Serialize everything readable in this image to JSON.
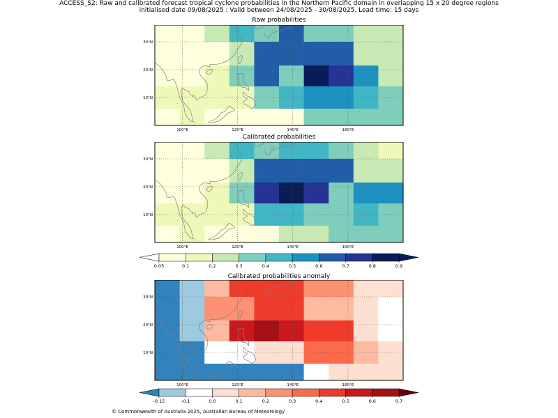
{
  "title_line1": "ACCESS_S2: Raw and calibrated forecast tropical cyclone probabilities in the Northern Pacific domain in overlapping 15 x 20 degree regions",
  "title_line2": "initialised date 09/08/2025 :  Valid between 24/08/2025 - 30/08/2025. Lead time: 15 days",
  "footer": "© Commonwealth of Australia 2025, Australian Bureau of Meteorology",
  "panels": [
    {
      "title": "Raw probabilities",
      "scale": "prob",
      "rows": [
        [
          "w",
          "w",
          "l",
          "p",
          "m",
          "o",
          "n",
          "m",
          "j",
          "j"
        ],
        [
          "w",
          "w",
          "w",
          "l",
          "a",
          "a",
          "o",
          "o",
          "i",
          "i"
        ],
        [
          "w",
          "w",
          "v",
          "m",
          "h",
          "n",
          "r",
          "x",
          "f",
          "l"
        ],
        [
          "v",
          "v",
          "k",
          "k",
          "c",
          "e",
          "g",
          "g",
          "e",
          "b"
        ],
        [
          "w",
          "v",
          "w",
          "w",
          "q",
          "q",
          "n",
          "n",
          "n",
          "n"
        ]
      ]
    },
    {
      "title": "Calibrated probabilities",
      "scale": "prob",
      "rows": [
        [
          "w",
          "w",
          "l",
          "p",
          "m",
          "d",
          "e",
          "m",
          "j",
          "k"
        ],
        [
          "w",
          "w",
          "w",
          "l",
          "a",
          "a",
          "o",
          "o",
          "i",
          "j"
        ],
        [
          "w",
          "w",
          "v",
          "m",
          "x",
          "u",
          "y",
          "n",
          "f",
          "f"
        ],
        [
          "v",
          "v",
          "k",
          "k",
          "e",
          "e",
          "n",
          "n",
          "e",
          "b"
        ],
        [
          "w",
          "v",
          "w",
          "w",
          "q",
          "j",
          "j",
          "n",
          "n",
          "n"
        ]
      ]
    },
    {
      "title": "Calibrated probabilities anomaly",
      "scale": "anom",
      "rows": [
        [
          "B",
          "L",
          "P",
          "R",
          "R",
          "R",
          "O",
          "O",
          "S",
          "S"
        ],
        [
          "B",
          "L",
          "O",
          "O",
          "R",
          "R",
          "G",
          "G",
          "S",
          "W"
        ],
        [
          "B",
          "M",
          "G",
          "U",
          "D",
          "C",
          "F",
          "F",
          "S",
          "W"
        ],
        [
          "B",
          "B",
          "W",
          "W",
          "S",
          "S",
          "H",
          "H",
          "G",
          "S"
        ],
        [
          "B",
          "B",
          "B",
          "B",
          "B",
          "B",
          "W",
          "S",
          "S",
          "S"
        ]
      ]
    }
  ],
  "lat_labels": [
    "30°N",
    "20°N",
    "10°N"
  ],
  "lon_labels": [
    "100°E",
    "120°E",
    "140°E",
    "160°E"
  ],
  "colorbars": {
    "prob": {
      "ticks": [
        "0.05",
        "0.1",
        "0.2",
        "0.3",
        "0.4",
        "0.5",
        "0.6",
        "0.7",
        "0.8",
        "0.9"
      ],
      "colors": [
        "#ffffdd",
        "#eef8b8",
        "#c7e9b4",
        "#7fcdbb",
        "#41b6c4",
        "#1d91c0",
        "#225ea8",
        "#253494",
        "#081d58"
      ],
      "under": "#ffffff",
      "over": "#081d58"
    },
    "anom": {
      "ticks": [
        "-0.15",
        "-0.1",
        "0.0",
        "0.1",
        "0.2",
        "0.3",
        "0.4",
        "0.5",
        "0.6",
        "0.7"
      ],
      "colors": [
        "#9ecae1",
        "#ffffff",
        "#fee0d2",
        "#fcbba1",
        "#fc9272",
        "#fb6a4a",
        "#ef3b2c",
        "#cb181d",
        "#a50f15"
      ],
      "under": "#3182bd",
      "over": "#67000d"
    }
  },
  "palette": {
    "w": "#ffffdd",
    "v": "#eef8b8",
    "l": "#c7e9b4",
    "m": "#7fcdbb",
    "i": "#c7e9b4",
    "j": "#c7e9b4",
    "k": "#eef8b8",
    "q": "#ffffdd",
    "n": "#7fcdbb",
    "b": "#7fcdbb",
    "c": "#7fcdbb",
    "e": "#41b6c4",
    "f": "#1d91c0",
    "g": "#1d91c0",
    "p": "#41b6c4",
    "d": "#41b6c4",
    "o": "#225ea8",
    "a": "#225ea8",
    "h": "#225ea8",
    "r": "#081d58",
    "u": "#081d58",
    "x": "#253494",
    "y": "#253494",
    "B": "#3182bd",
    "L": "#9ecae1",
    "M": "#9ecae1",
    "W": "#ffffff",
    "S": "#fee0d2",
    "P": "#fcbba1",
    "O": "#fc9272",
    "G": "#fcbba1",
    "H": "#fb6a4a",
    "R": "#ef3b2c",
    "F": "#ef3b2c",
    "U": "#cb181d",
    "C": "#cb181d",
    "D": "#a50f15"
  }
}
